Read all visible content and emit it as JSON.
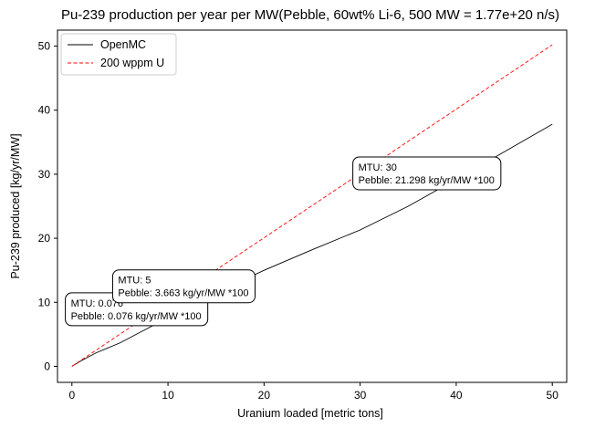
{
  "chart_data": {
    "type": "line",
    "title": "Pu-239 production per year per MW(Pebble, 60wt% Li-6, 500 MW = 1.77e+20 n/s)",
    "xlabel": "Uranium loaded [metric tons]",
    "ylabel": "Pu-239 produced [kg/yr/MW]",
    "xlim": [
      -1.5,
      51.5
    ],
    "ylim": [
      -2.5,
      52.5
    ],
    "xticks": [
      0,
      10,
      20,
      30,
      40,
      50
    ],
    "yticks": [
      0,
      10,
      20,
      30,
      40,
      50
    ],
    "grid": false,
    "legend_position": "top-left",
    "series": [
      {
        "name": "OpenMC",
        "color": "#000000",
        "dash": "solid",
        "x": [
          0,
          0.076,
          1,
          2.5,
          5,
          10,
          15,
          20,
          25,
          30,
          35,
          40,
          45,
          50
        ],
        "y": [
          0,
          0.076,
          0.9,
          2.1,
          3.663,
          7.6,
          11.5,
          15.0,
          18.2,
          21.298,
          25.0,
          29.2,
          33.5,
          37.8
        ]
      },
      {
        "name": "200 wppm U",
        "color": "#ff0000",
        "dash": "dashed",
        "x": [
          0,
          50
        ],
        "y": [
          0,
          50.2
        ]
      }
    ],
    "annotations": [
      {
        "x": 0.076,
        "y": 0.076,
        "line1": "MTU: 0.076",
        "line2": "Pebble: 0.076 kg/yr/MW *100"
      },
      {
        "x": 5,
        "y": 3.663,
        "line1": "MTU: 5",
        "line2": "Pebble: 3.663 kg/yr/MW *100"
      },
      {
        "x": 30,
        "y": 21.298,
        "line1": "MTU: 30",
        "line2": "Pebble: 21.298 kg/yr/MW *100"
      }
    ]
  }
}
